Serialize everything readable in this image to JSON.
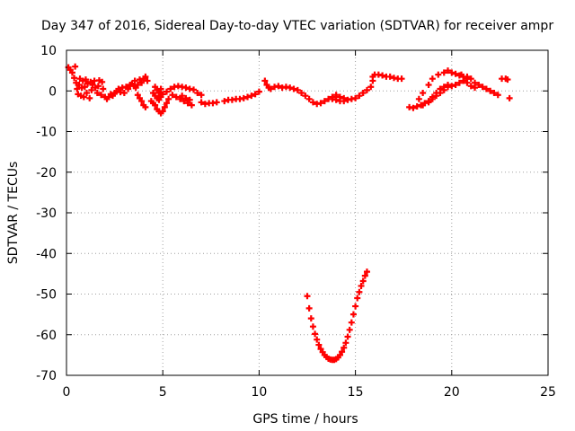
{
  "chart_data": {
    "type": "scatter",
    "title": "Day 347 of 2016, Sidereal Day-to-day VTEC variation (SDTVAR) for receiver ampr",
    "xlabel": "GPS time / hours",
    "ylabel": "SDTVAR / TECUs",
    "xlim": [
      0,
      25
    ],
    "ylim": [
      -70,
      10
    ],
    "xticks": [
      0,
      5,
      10,
      15,
      20,
      25
    ],
    "yticks": [
      10,
      0,
      -10,
      -20,
      -30,
      -40,
      -50,
      -60,
      -70
    ],
    "grid": true,
    "marker": "plus",
    "color": "#ff0000",
    "series": [
      {
        "points": [
          [
            0.1,
            5.8
          ],
          [
            0.2,
            5.2
          ],
          [
            0.3,
            4.5
          ],
          [
            0.4,
            3.2
          ],
          [
            0.45,
            6.0
          ],
          [
            0.5,
            2.0
          ],
          [
            0.55,
            0.5
          ],
          [
            0.6,
            -0.8
          ],
          [
            0.65,
            1.5
          ],
          [
            0.7,
            3.0
          ],
          [
            0.75,
            -1.2
          ],
          [
            0.8,
            0.8
          ],
          [
            0.85,
            2.5
          ],
          [
            0.9,
            -1.5
          ],
          [
            0.95,
            1.0
          ],
          [
            1.0,
            2.8
          ],
          [
            1.05,
            -0.5
          ],
          [
            1.1,
            1.8
          ],
          [
            1.2,
            -1.8
          ],
          [
            1.25,
            2.2
          ],
          [
            1.3,
            0.2
          ],
          [
            1.35,
            1.5
          ],
          [
            1.45,
            2.5
          ],
          [
            1.5,
            0.8
          ],
          [
            1.6,
            -0.5
          ],
          [
            1.65,
            1.2
          ],
          [
            1.7,
            2.6
          ],
          [
            1.8,
            -1.0
          ],
          [
            1.85,
            2.2
          ],
          [
            1.9,
            0.5
          ],
          [
            2.0,
            -1.5
          ],
          [
            2.1,
            -2.0
          ],
          [
            2.2,
            -1.5
          ],
          [
            2.3,
            -0.8
          ],
          [
            2.4,
            -1.2
          ],
          [
            2.5,
            -0.5
          ],
          [
            2.6,
            -0.2
          ],
          [
            2.7,
            0.5
          ],
          [
            2.8,
            -0.3
          ],
          [
            2.9,
            0.8
          ],
          [
            3.0,
            -0.5
          ],
          [
            3.1,
            1.0
          ],
          [
            3.2,
            0.5
          ],
          [
            3.3,
            1.5
          ],
          [
            3.4,
            1.8
          ],
          [
            3.5,
            1.2
          ],
          [
            3.55,
            2.5
          ],
          [
            3.6,
            0.8
          ],
          [
            3.7,
            1.5
          ],
          [
            3.8,
            2.8
          ],
          [
            3.9,
            2.0
          ],
          [
            4.0,
            3.0
          ],
          [
            4.1,
            3.5
          ],
          [
            4.2,
            2.5
          ],
          [
            3.7,
            -1.0
          ],
          [
            3.8,
            -1.8
          ],
          [
            3.9,
            -2.5
          ],
          [
            4.0,
            -3.5
          ],
          [
            4.1,
            -4.0
          ],
          [
            4.4,
            -2.5
          ],
          [
            4.5,
            -3.0
          ],
          [
            4.6,
            -3.5
          ],
          [
            4.7,
            -4.5
          ],
          [
            4.8,
            -5.0
          ],
          [
            4.9,
            -5.5
          ],
          [
            5.0,
            -5.0
          ],
          [
            5.1,
            -4.0
          ],
          [
            5.2,
            -3.0
          ],
          [
            5.3,
            -2.0
          ],
          [
            4.5,
            -0.5
          ],
          [
            4.6,
            -1.2
          ],
          [
            4.7,
            -1.8
          ],
          [
            4.8,
            -2.2
          ],
          [
            4.9,
            -1.5
          ],
          [
            5.0,
            -0.8
          ],
          [
            4.6,
            1.0
          ],
          [
            4.7,
            0.2
          ],
          [
            4.8,
            -0.5
          ],
          [
            4.9,
            0.5
          ],
          [
            5.2,
            -0.2
          ],
          [
            5.4,
            0.5
          ],
          [
            5.6,
            1.0
          ],
          [
            5.8,
            1.2
          ],
          [
            6.0,
            1.0
          ],
          [
            6.2,
            0.8
          ],
          [
            6.4,
            0.5
          ],
          [
            6.6,
            0.3
          ],
          [
            6.8,
            -0.5
          ],
          [
            7.0,
            -1.0
          ],
          [
            5.5,
            -1.0
          ],
          [
            5.7,
            -1.5
          ],
          [
            5.9,
            -2.0
          ],
          [
            6.1,
            -2.5
          ],
          [
            6.3,
            -3.0
          ],
          [
            6.5,
            -3.5
          ],
          [
            6.0,
            -1.2
          ],
          [
            6.2,
            -1.8
          ],
          [
            6.4,
            -2.2
          ],
          [
            7.0,
            -2.8
          ],
          [
            7.2,
            -3.2
          ],
          [
            7.4,
            -3.0
          ],
          [
            7.6,
            -3.0
          ],
          [
            7.8,
            -2.8
          ],
          [
            8.2,
            -2.5
          ],
          [
            8.4,
            -2.2
          ],
          [
            8.6,
            -2.2
          ],
          [
            8.8,
            -2.0
          ],
          [
            9.0,
            -2.0
          ],
          [
            9.2,
            -1.8
          ],
          [
            9.4,
            -1.5
          ],
          [
            9.6,
            -1.2
          ],
          [
            9.8,
            -0.8
          ],
          [
            10.0,
            -0.2
          ],
          [
            10.3,
            2.5
          ],
          [
            10.4,
            1.5
          ],
          [
            10.5,
            0.8
          ],
          [
            10.6,
            0.5
          ],
          [
            10.8,
            1.0
          ],
          [
            11.0,
            1.2
          ],
          [
            11.2,
            0.8
          ],
          [
            11.4,
            1.0
          ],
          [
            11.6,
            0.8
          ],
          [
            11.8,
            0.5
          ],
          [
            12.0,
            0.2
          ],
          [
            12.2,
            -0.5
          ],
          [
            12.4,
            -1.2
          ],
          [
            12.6,
            -2.0
          ],
          [
            12.8,
            -2.8
          ],
          [
            13.0,
            -3.2
          ],
          [
            13.2,
            -3.0
          ],
          [
            13.4,
            -2.5
          ],
          [
            13.6,
            -2.0
          ],
          [
            13.8,
            -1.5
          ],
          [
            13.8,
            -2.0
          ],
          [
            14.0,
            -2.2
          ],
          [
            14.2,
            -2.5
          ],
          [
            14.4,
            -2.5
          ],
          [
            14.6,
            -2.2
          ],
          [
            14.8,
            -2.0
          ],
          [
            15.0,
            -1.8
          ],
          [
            15.2,
            -1.2
          ],
          [
            15.4,
            -0.5
          ],
          [
            15.6,
            0.2
          ],
          [
            15.8,
            1.0
          ],
          [
            15.9,
            2.5
          ],
          [
            14.0,
            -1.0
          ],
          [
            14.2,
            -1.5
          ],
          [
            14.4,
            -1.8
          ],
          [
            15.9,
            3.5
          ],
          [
            16.0,
            4.0
          ],
          [
            16.2,
            4.0
          ],
          [
            16.4,
            3.8
          ],
          [
            16.6,
            3.5
          ],
          [
            16.8,
            3.5
          ],
          [
            17.0,
            3.2
          ],
          [
            17.2,
            3.0
          ],
          [
            17.4,
            3.0
          ],
          [
            17.8,
            -4.0
          ],
          [
            18.0,
            -4.2
          ],
          [
            18.2,
            -3.8
          ],
          [
            18.4,
            -3.5
          ],
          [
            18.6,
            -3.0
          ],
          [
            18.8,
            -2.5
          ],
          [
            19.0,
            -1.5
          ],
          [
            19.2,
            -0.5
          ],
          [
            19.4,
            0.5
          ],
          [
            19.6,
            1.0
          ],
          [
            19.8,
            1.5
          ],
          [
            20.0,
            1.2
          ],
          [
            20.2,
            1.5
          ],
          [
            20.4,
            2.0
          ],
          [
            20.6,
            2.5
          ],
          [
            20.8,
            3.0
          ],
          [
            18.3,
            -2.0
          ],
          [
            18.5,
            -0.5
          ],
          [
            18.8,
            1.5
          ],
          [
            19.0,
            3.0
          ],
          [
            19.3,
            4.0
          ],
          [
            19.6,
            4.5
          ],
          [
            19.8,
            5.0
          ],
          [
            20.0,
            4.5
          ],
          [
            20.2,
            4.2
          ],
          [
            20.4,
            3.8
          ],
          [
            20.6,
            3.5
          ],
          [
            20.8,
            3.0
          ],
          [
            18.5,
            -3.5
          ],
          [
            18.8,
            -2.8
          ],
          [
            19.0,
            -2.0
          ],
          [
            19.2,
            -1.2
          ],
          [
            19.4,
            -0.5
          ],
          [
            19.6,
            0.2
          ],
          [
            19.8,
            1.0
          ],
          [
            20.5,
            4.0
          ],
          [
            20.8,
            3.5
          ],
          [
            21.0,
            3.0
          ],
          [
            21.2,
            2.0
          ],
          [
            21.4,
            1.5
          ],
          [
            21.6,
            1.0
          ],
          [
            21.8,
            0.5
          ],
          [
            22.0,
            0.0
          ],
          [
            22.2,
            -0.5
          ],
          [
            22.4,
            -1.0
          ],
          [
            20.8,
            2.0
          ],
          [
            21.0,
            1.2
          ],
          [
            21.2,
            0.8
          ],
          [
            22.6,
            3.0
          ],
          [
            22.8,
            3.0
          ],
          [
            22.9,
            2.8
          ],
          [
            23.0,
            -1.8
          ]
        ],
        "dip": [
          [
            12.5,
            -50.5
          ],
          [
            12.6,
            -53.5
          ],
          [
            12.7,
            -56.0
          ],
          [
            12.8,
            -58.0
          ],
          [
            12.9,
            -59.8
          ],
          [
            13.0,
            -61.2
          ],
          [
            13.1,
            -62.5
          ],
          [
            13.2,
            -63.5
          ],
          [
            13.3,
            -64.3
          ],
          [
            13.4,
            -65.0
          ],
          [
            13.5,
            -65.5
          ],
          [
            13.6,
            -65.9
          ],
          [
            13.7,
            -66.1
          ],
          [
            13.8,
            -66.2
          ],
          [
            13.9,
            -66.2
          ],
          [
            14.0,
            -66.0
          ],
          [
            14.1,
            -65.6
          ],
          [
            14.2,
            -65.0
          ],
          [
            14.3,
            -64.2
          ],
          [
            14.4,
            -63.2
          ],
          [
            14.5,
            -62.0
          ],
          [
            14.6,
            -60.5
          ],
          [
            14.7,
            -58.8
          ],
          [
            14.8,
            -57.0
          ],
          [
            14.9,
            -55.0
          ],
          [
            15.0,
            -53.0
          ],
          [
            15.1,
            -51.0
          ],
          [
            15.2,
            -49.5
          ],
          [
            15.3,
            -48.0
          ],
          [
            15.4,
            -46.8
          ],
          [
            15.5,
            -45.5
          ],
          [
            15.6,
            -44.5
          ]
        ]
      }
    ]
  }
}
